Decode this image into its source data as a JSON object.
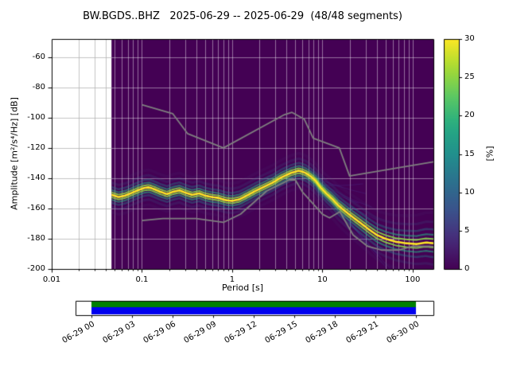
{
  "meta": {
    "network_station_channel": "BW.BGDS..BHZ",
    "date_start": "2025-06-29",
    "date_end": "2025-06-29",
    "segments_used": "48/48"
  },
  "chart_data": {
    "type": "heatmap",
    "subtype": "ppsd-probabilistic-power-spectral-density",
    "title": "BW.BGDS..BHZ   2025-06-29 -- 2025-06-29  (48/48 segments)",
    "xlabel": "Period [s]",
    "ylabel": "Amplitude [m²/s⁴/Hz] [dB]",
    "x_scale": "log",
    "xlim": [
      0.01,
      170
    ],
    "ylim": [
      -200,
      -48
    ],
    "grid": true,
    "x_ticks": [
      {
        "value": 0.01,
        "label": "0.01"
      },
      {
        "value": 0.1,
        "label": "0.1"
      },
      {
        "value": 1,
        "label": "1"
      },
      {
        "value": 10,
        "label": "10"
      },
      {
        "value": 100,
        "label": "100"
      }
    ],
    "y_ticks": [
      {
        "value": -200,
        "label": "-200"
      },
      {
        "value": -180,
        "label": "-180"
      },
      {
        "value": -160,
        "label": "-160"
      },
      {
        "value": -140,
        "label": "-140"
      },
      {
        "value": -120,
        "label": "-120"
      },
      {
        "value": -100,
        "label": "-100"
      },
      {
        "value": -80,
        "label": "-80"
      },
      {
        "value": -60,
        "label": "-60"
      }
    ],
    "colorbar": {
      "label": "[%]",
      "lim": [
        0,
        30
      ],
      "tick_values": [
        0,
        5,
        10,
        15,
        20,
        25,
        30
      ],
      "ticks": [
        "0",
        "5",
        "10",
        "15",
        "20",
        "25",
        "30"
      ],
      "colormap": "viridis"
    },
    "data_region": {
      "period_min": 0.046,
      "period_max": 170,
      "zero_percent_color": "#440154"
    },
    "series": [
      {
        "name": "psd-mode-ridge",
        "description": "most probable PSD value per period (bright yellow ridge of histogram)",
        "points": [
          [
            0.046,
            -151
          ],
          [
            0.055,
            -152.5
          ],
          [
            0.065,
            -151.5
          ],
          [
            0.075,
            -150
          ],
          [
            0.09,
            -148
          ],
          [
            0.105,
            -146.5
          ],
          [
            0.12,
            -146
          ],
          [
            0.14,
            -147.5
          ],
          [
            0.16,
            -149
          ],
          [
            0.19,
            -150.5
          ],
          [
            0.22,
            -149
          ],
          [
            0.26,
            -148
          ],
          [
            0.3,
            -149.5
          ],
          [
            0.36,
            -151
          ],
          [
            0.43,
            -150
          ],
          [
            0.5,
            -151.5
          ],
          [
            0.6,
            -152.5
          ],
          [
            0.7,
            -153
          ],
          [
            0.85,
            -154.5
          ],
          [
            1.0,
            -155
          ],
          [
            1.2,
            -154
          ],
          [
            1.45,
            -151.5
          ],
          [
            1.8,
            -148.5
          ],
          [
            2.2,
            -146
          ],
          [
            2.8,
            -143
          ],
          [
            3.5,
            -139.5
          ],
          [
            4.5,
            -136.5
          ],
          [
            5.5,
            -135
          ],
          [
            6.5,
            -136.5
          ],
          [
            7.5,
            -139
          ],
          [
            8.5,
            -142
          ],
          [
            9.5,
            -146
          ],
          [
            11,
            -150
          ],
          [
            13,
            -154
          ],
          [
            15,
            -158
          ],
          [
            18,
            -162
          ],
          [
            22,
            -166
          ],
          [
            27,
            -170
          ],
          [
            33,
            -174
          ],
          [
            40,
            -177.5
          ],
          [
            50,
            -180
          ],
          [
            65,
            -182
          ],
          [
            85,
            -183
          ],
          [
            110,
            -183.5
          ],
          [
            140,
            -182.5
          ],
          [
            170,
            -183
          ]
        ]
      },
      {
        "name": "noise-model-low-NLNM",
        "color": "#7f7f7f",
        "points": [
          [
            0.1,
            -168
          ],
          [
            0.17,
            -166.7
          ],
          [
            0.4,
            -166.7
          ],
          [
            0.8,
            -169.2
          ],
          [
            1.24,
            -163.7
          ],
          [
            2.4,
            -148.6
          ],
          [
            4.3,
            -141.1
          ],
          [
            5,
            -141.1
          ],
          [
            6,
            -149
          ],
          [
            10,
            -163.8
          ],
          [
            12,
            -166.2
          ],
          [
            15.6,
            -162.1
          ],
          [
            21.9,
            -177.5
          ],
          [
            31.6,
            -185
          ],
          [
            45,
            -187.5
          ],
          [
            70,
            -187.5
          ],
          [
            101,
            -185
          ],
          [
            154,
            -185
          ],
          [
            170,
            -185.2
          ]
        ]
      },
      {
        "name": "noise-model-high-NHNM",
        "color": "#7f7f7f",
        "points": [
          [
            0.1,
            -91.5
          ],
          [
            0.22,
            -97.4
          ],
          [
            0.32,
            -110.5
          ],
          [
            0.8,
            -120
          ],
          [
            3.8,
            -98
          ],
          [
            4.6,
            -96.5
          ],
          [
            6.3,
            -101
          ],
          [
            7.9,
            -113.5
          ],
          [
            15.4,
            -120
          ],
          [
            20,
            -138.5
          ],
          [
            170,
            -129.2
          ]
        ]
      }
    ],
    "timeline": {
      "description": "data coverage bar, full day covered",
      "tick_labels": [
        "06-29 00",
        "06-29 03",
        "06-29 06",
        "06-29 09",
        "06-29 12",
        "06-29 15",
        "06-29 18",
        "06-29 21",
        "06-30 00"
      ],
      "stripe_colors": [
        "#008000",
        "#0000ee"
      ]
    }
  }
}
